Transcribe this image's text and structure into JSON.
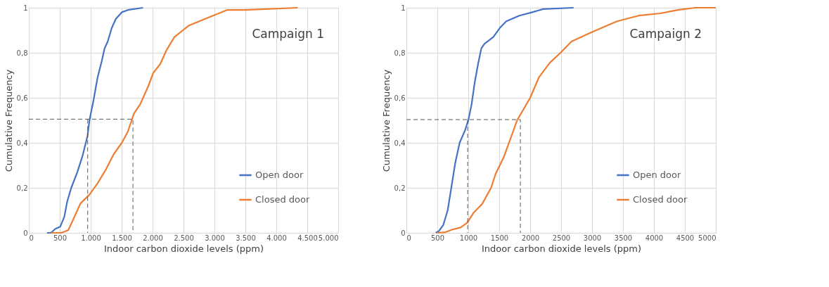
{
  "chart_data": [
    {
      "type": "line",
      "title": "Campaign 1",
      "xlabel": "Indoor carbon dioxide levels (ppm)",
      "ylabel": "Cumulative Frequency",
      "xlim": [
        0,
        5000
      ],
      "xticks": [
        0,
        500,
        {
          "value": 1000,
          "label": "1.000"
        },
        {
          "value": 1500,
          "label": "1.500"
        },
        {
          "value": 2000,
          "label": "2.000"
        },
        {
          "value": 2500,
          "label": "2.500"
        },
        {
          "value": 3000,
          "label": "3.000"
        },
        {
          "value": 3500,
          "label": "3.500"
        },
        {
          "value": 4000,
          "label": "4.000"
        },
        {
          "value": 4500,
          "label": "4.500"
        },
        {
          "value": 5000,
          "label": "5.000"
        }
      ],
      "ylim": [
        0,
        1
      ],
      "yticks": [
        0,
        {
          "value": 0.2,
          "label": "0,2"
        },
        {
          "value": 0.4,
          "label": "0,4"
        },
        {
          "value": 0.6,
          "label": "0,6"
        },
        {
          "value": 0.8,
          "label": "0,8"
        },
        1
      ],
      "grid": true,
      "legend": "bottom right",
      "marker": "none",
      "series": [
        {
          "name": "Open door",
          "color": "#4472c4",
          "line_style": "solid",
          "x": [
            294,
            359,
            425,
            507,
            572,
            621,
            686,
            784,
            866,
            948,
            980,
            1046,
            1111,
            1176,
            1225,
            1275,
            1340,
            1405,
            1503,
            1601,
            1846
          ],
          "values": [
            0,
            0,
            0.017,
            0.027,
            0.07,
            0.14,
            0.2,
            0.27,
            0.34,
            0.43,
            0.5,
            0.59,
            0.69,
            0.76,
            0.82,
            0.85,
            0.91,
            0.95,
            0.98,
            0.99,
            1
          ]
        },
        {
          "name": "Closed door",
          "color": "#ed7d31",
          "line_style": "solid",
          "x": [
            359,
            523,
            637,
            719,
            833,
            980,
            1111,
            1242,
            1373,
            1503,
            1601,
            1699,
            1797,
            1928,
            2010,
            2124,
            2222,
            2353,
            2582,
            2843,
            3203,
            3497,
            4346
          ],
          "values": [
            0,
            0,
            0.012,
            0.06,
            0.13,
            0.17,
            0.22,
            0.28,
            0.35,
            0.4,
            0.45,
            0.53,
            0.57,
            0.65,
            0.71,
            0.75,
            0.81,
            0.87,
            0.92,
            0.95,
            0.99,
            0.99,
            1
          ]
        },
        {
          "color": "#595959",
          "line_style": "dashed",
          "x": [
            0,
            1683,
            1683
          ],
          "values": [
            0.505,
            0.505,
            0
          ]
        },
        {
          "color": "#595959",
          "line_style": "dashed",
          "x": [
            951,
            951
          ],
          "values": [
            0.505,
            0
          ]
        }
      ]
    },
    {
      "type": "line",
      "title": "Campaign 2",
      "xlabel": "Indoor carbon dioxide levels (ppm)",
      "ylabel": "Cumulative Frequency",
      "xlim": [
        0,
        5000
      ],
      "xticks": [
        0,
        500,
        1000,
        1500,
        2000,
        2500,
        3000,
        3500,
        4000,
        4500,
        5000
      ],
      "ylim": [
        0,
        1
      ],
      "yticks": [
        0,
        {
          "value": 0.2,
          "label": "0,2"
        },
        {
          "value": 0.4,
          "label": "0,4"
        },
        {
          "value": 0.6,
          "label": "0,6"
        },
        {
          "value": 0.8,
          "label": "0,8"
        },
        1
      ],
      "grid": true,
      "legend": "bottom right",
      "marker": "none",
      "series": [
        {
          "name": "Open door",
          "color": "#4472c4",
          "line_style": "solid",
          "x": [
            474,
            526,
            596,
            667,
            737,
            789,
            860,
            947,
            1000,
            1053,
            1105,
            1158,
            1211,
            1263,
            1404,
            1509,
            1614,
            1825,
            2035,
            2211,
            2702
          ],
          "values": [
            0,
            0.008,
            0.035,
            0.1,
            0.22,
            0.31,
            0.4,
            0.455,
            0.5,
            0.57,
            0.67,
            0.75,
            0.82,
            0.84,
            0.87,
            0.91,
            0.94,
            0.965,
            0.98,
            0.994,
            1
          ]
        },
        {
          "name": "Closed door",
          "color": "#ed7d31",
          "line_style": "solid",
          "x": [
            491,
            632,
            737,
            877,
            982,
            1088,
            1228,
            1368,
            1439,
            1579,
            1684,
            1789,
            1895,
            2000,
            2140,
            2316,
            2491,
            2667,
            2982,
            3404,
            3754,
            4105,
            4386,
            4667,
            5000
          ],
          "values": [
            0,
            0.003,
            0.014,
            0.024,
            0.045,
            0.09,
            0.13,
            0.2,
            0.26,
            0.34,
            0.42,
            0.5,
            0.55,
            0.6,
            0.69,
            0.755,
            0.8,
            0.85,
            0.89,
            0.94,
            0.965,
            0.975,
            0.99,
            1,
            1
          ]
        },
        {
          "color": "#595959",
          "line_style": "dashed",
          "x": [
            0,
            1842,
            1842
          ],
          "values": [
            0.503,
            0.503,
            0
          ]
        },
        {
          "color": "#595959",
          "line_style": "dashed",
          "x": [
            990,
            990
          ],
          "values": [
            0.503,
            0
          ]
        }
      ]
    }
  ]
}
